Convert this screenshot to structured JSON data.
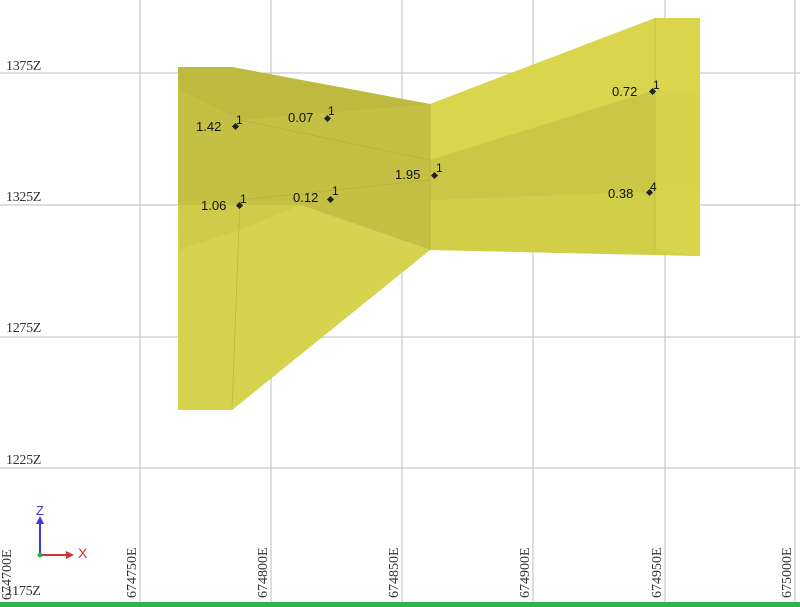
{
  "viewer": {
    "z_labels": [
      "1375Z",
      "1325Z",
      "1275Z",
      "1225Z",
      "1175Z"
    ],
    "e_labels": [
      "674700E",
      "674750E",
      "674800E",
      "674850E",
      "674900E",
      "674950E",
      "675000E"
    ],
    "samples": [
      {
        "label": "1.42",
        "tag": "1"
      },
      {
        "label": "0.07",
        "tag": "1"
      },
      {
        "label": "1.06",
        "tag": "1"
      },
      {
        "label": "0.12",
        "tag": "1"
      },
      {
        "label": "1.95",
        "tag": "1"
      },
      {
        "label": "0.72",
        "tag": "1"
      },
      {
        "label": "0.38",
        "tag": "4"
      }
    ],
    "axes": {
      "z": "Z",
      "x": "X"
    }
  },
  "colors": {
    "solid_fill": "#d4d14a",
    "solid_dark": "#b9b63e",
    "grid": "#bdbdbd",
    "accent_bar": "#2fb24a",
    "axis_z": "#3a3ad0",
    "axis_x": "#d43030"
  }
}
